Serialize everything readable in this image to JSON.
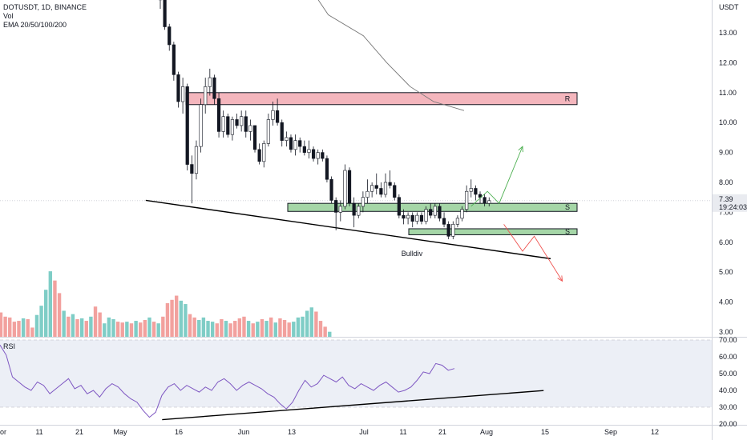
{
  "legend": {
    "symbol": "DOTUSDT, 1D, BINANCE",
    "vol": "Vol",
    "ema": "EMA 20/50/100/200"
  },
  "rsi_label": "RSI",
  "price_axis": {
    "unit": "USDT",
    "ticks": [
      "13.00",
      "12.00",
      "11.00",
      "10.00",
      "9.00",
      "8.00",
      "7.00",
      "6.00",
      "5.00",
      "4.00",
      "3.00"
    ],
    "current_price": "7.39",
    "countdown": "19:24:03"
  },
  "rsi_axis": {
    "ticks": [
      "70.00",
      "60.00",
      "50.00",
      "40.00",
      "30.00",
      "20.00"
    ]
  },
  "time_axis": [
    "or",
    "11",
    "21",
    "May",
    "16",
    "Jun",
    "13",
    "Jul",
    "11",
    "21",
    "Aug",
    "15",
    "Sep",
    "12"
  ],
  "zones": [
    {
      "label": "R",
      "color": "#f4b6bd",
      "low": 10.6,
      "high": 11.0
    },
    {
      "label": "S",
      "color": "#a5d6a7",
      "low": 7.03,
      "high": 7.3
    },
    {
      "label": "S",
      "color": "#a5d6a7",
      "low": 6.25,
      "high": 6.45
    }
  ],
  "annotations": {
    "bulldiv": "Bulldiv"
  },
  "colors": {
    "up": "#26a69a",
    "down": "#ef5350",
    "vol_up": "#7fcdc6",
    "vol_down": "#f2a19e",
    "zone_border": "#131722",
    "rsi_line": "#7e57c2",
    "ema": "#777777",
    "green_path": "#4caf50",
    "red_path": "#ef5350"
  },
  "chart_data": {
    "type": "candlestick",
    "title": "DOTUSDT, 1D, BINANCE",
    "ylim": [
      3.0,
      13.6
    ],
    "ohlc": [
      [
        14.6,
        15.2,
        13.8,
        14.1
      ],
      [
        14.1,
        14.2,
        13.1,
        13.2
      ],
      [
        13.2,
        13.3,
        12.4,
        12.6
      ],
      [
        12.6,
        12.7,
        11.4,
        11.6
      ],
      [
        11.6,
        11.7,
        10.5,
        10.7
      ],
      [
        10.7,
        11.5,
        10.3,
        11.2
      ],
      [
        11.2,
        11.3,
        8.4,
        8.6
      ],
      [
        8.6,
        8.9,
        7.3,
        8.3
      ],
      [
        8.3,
        9.4,
        8.1,
        9.2
      ],
      [
        9.2,
        10.8,
        9.0,
        10.6
      ],
      [
        10.6,
        11.5,
        10.3,
        11.2
      ],
      [
        11.2,
        11.8,
        10.9,
        11.5
      ],
      [
        11.5,
        11.6,
        10.6,
        10.8
      ],
      [
        10.8,
        11.0,
        9.5,
        9.7
      ],
      [
        9.7,
        10.4,
        9.5,
        10.2
      ],
      [
        10.2,
        10.3,
        9.5,
        9.6
      ],
      [
        9.6,
        10.2,
        9.4,
        10.1
      ],
      [
        10.1,
        10.3,
        9.8,
        9.9
      ],
      [
        9.9,
        10.4,
        9.7,
        10.2
      ],
      [
        10.2,
        10.4,
        9.5,
        9.7
      ],
      [
        9.7,
        10.1,
        9.4,
        9.9
      ],
      [
        9.9,
        9.9,
        9.0,
        9.1
      ],
      [
        9.1,
        9.3,
        8.6,
        8.7
      ],
      [
        8.7,
        9.4,
        8.5,
        9.3
      ],
      [
        9.3,
        10.3,
        9.2,
        10.1
      ],
      [
        10.1,
        10.7,
        9.9,
        10.4
      ],
      [
        10.4,
        10.8,
        9.9,
        10.0
      ],
      [
        10.0,
        10.1,
        9.2,
        9.4
      ],
      [
        9.4,
        9.7,
        9.2,
        9.5
      ],
      [
        9.5,
        9.6,
        9.0,
        9.1
      ],
      [
        9.1,
        9.6,
        8.9,
        9.4
      ],
      [
        9.4,
        9.5,
        9.0,
        9.2
      ],
      [
        9.2,
        9.4,
        8.9,
        9.0
      ],
      [
        9.0,
        9.4,
        8.8,
        9.1
      ],
      [
        9.1,
        9.2,
        8.7,
        8.8
      ],
      [
        8.8,
        9.1,
        8.6,
        9.0
      ],
      [
        9.0,
        9.1,
        8.7,
        8.8
      ],
      [
        8.8,
        8.9,
        8.0,
        8.1
      ],
      [
        8.1,
        8.2,
        7.3,
        7.4
      ],
      [
        7.4,
        7.5,
        6.4,
        7.0
      ],
      [
        7.0,
        7.4,
        6.7,
        7.2
      ],
      [
        7.2,
        8.6,
        7.1,
        8.4
      ],
      [
        8.4,
        8.5,
        7.2,
        7.3
      ],
      [
        7.3,
        7.5,
        6.5,
        6.9
      ],
      [
        6.9,
        7.3,
        6.8,
        7.2
      ],
      [
        7.2,
        7.7,
        7.0,
        7.5
      ],
      [
        7.5,
        8.1,
        7.3,
        7.7
      ],
      [
        7.7,
        8.0,
        7.5,
        7.9
      ],
      [
        7.9,
        8.3,
        7.6,
        7.8
      ],
      [
        7.8,
        8.0,
        7.5,
        7.6
      ],
      [
        7.6,
        8.3,
        7.5,
        8.0
      ],
      [
        8.0,
        8.4,
        7.8,
        7.9
      ],
      [
        7.9,
        8.0,
        7.4,
        7.5
      ],
      [
        7.5,
        7.6,
        6.8,
        6.9
      ],
      [
        6.9,
        7.1,
        6.6,
        6.8
      ],
      [
        6.8,
        7.0,
        6.6,
        6.9
      ],
      [
        6.9,
        7.0,
        6.5,
        6.7
      ],
      [
        6.7,
        7.0,
        6.6,
        6.9
      ],
      [
        6.9,
        7.0,
        6.6,
        6.7
      ],
      [
        6.7,
        7.2,
        6.6,
        7.1
      ],
      [
        7.1,
        7.3,
        6.8,
        6.9
      ],
      [
        6.9,
        7.3,
        6.8,
        7.2
      ],
      [
        7.2,
        7.3,
        6.7,
        6.8
      ],
      [
        6.8,
        7.0,
        6.5,
        6.6
      ],
      [
        6.6,
        6.7,
        6.1,
        6.2
      ],
      [
        6.2,
        6.7,
        6.1,
        6.6
      ],
      [
        6.6,
        6.9,
        6.5,
        6.8
      ],
      [
        6.8,
        7.2,
        6.7,
        7.1
      ],
      [
        7.1,
        7.9,
        7.0,
        7.7
      ],
      [
        7.7,
        8.1,
        7.5,
        7.8
      ],
      [
        7.8,
        7.9,
        7.4,
        7.6
      ],
      [
        7.6,
        7.7,
        7.3,
        7.5
      ],
      [
        7.5,
        7.6,
        7.2,
        7.3
      ],
      [
        7.3,
        7.5,
        7.2,
        7.39
      ]
    ],
    "volume_levels": [
      0.29,
      0.24,
      0.23,
      0.18,
      0.19,
      0.22,
      0.21,
      0.11,
      0.26,
      0.37,
      0.56,
      0.78,
      0.67,
      0.52,
      0.31,
      0.24,
      0.27,
      0.21,
      0.22,
      0.19,
      0.24,
      0.36,
      0.29,
      0.16,
      0.23,
      0.21,
      0.18,
      0.17,
      0.18,
      0.16,
      0.19,
      0.17,
      0.2,
      0.23,
      0.18,
      0.16,
      0.24,
      0.4,
      0.44,
      0.49,
      0.43,
      0.39,
      0.27,
      0.23,
      0.2,
      0.23,
      0.19,
      0.18,
      0.16,
      0.21,
      0.19,
      0.16,
      0.19,
      0.22,
      0.24,
      0.19,
      0.16,
      0.18,
      0.21,
      0.19,
      0.23,
      0.17,
      0.22,
      0.2,
      0.17,
      0.18,
      0.23,
      0.24,
      0.31,
      0.35,
      0.3,
      0.19,
      0.12,
      0.06
    ],
    "ema_line": [
      [
        11.8,
        15.0
      ],
      [
        13.0,
        13.6
      ],
      [
        14.5,
        12.9
      ],
      [
        15.5,
        12.0
      ],
      [
        16.5,
        11.2
      ],
      [
        17.5,
        10.7
      ],
      [
        18.8,
        10.4
      ]
    ],
    "support_line": [
      [
        5.2,
        7.4
      ],
      [
        22.5,
        5.45
      ]
    ],
    "rsi": {
      "ylim": [
        20,
        70
      ],
      "values": [
        67,
        61,
        48,
        45,
        42,
        40,
        45,
        43,
        38,
        41,
        44,
        47,
        41,
        43,
        38,
        40,
        36,
        41,
        44,
        42,
        38,
        35,
        33,
        28,
        24,
        27,
        37,
        42,
        44,
        40,
        43,
        41,
        39,
        42,
        40,
        45,
        47,
        44,
        40,
        43,
        45,
        43,
        41,
        38,
        36,
        32,
        29,
        33,
        40,
        46,
        42,
        44,
        49,
        47,
        45,
        48,
        43,
        41,
        44,
        42,
        40,
        43,
        45,
        42,
        39,
        40,
        42,
        46,
        51,
        50,
        56,
        55,
        52,
        53
      ],
      "trendline": [
        [
          5.9,
          22.6
        ],
        [
          22.2,
          39.9
        ]
      ]
    },
    "projections": [
      {
        "points": [
          [
            19.1,
            7.2
          ],
          [
            19.8,
            7.7
          ],
          [
            20.3,
            7.3
          ],
          [
            21.3,
            9.2
          ]
        ],
        "color": "green"
      },
      {
        "points": [
          [
            20.5,
            6.6
          ],
          [
            21.3,
            5.7
          ],
          [
            21.8,
            6.2
          ],
          [
            23.0,
            4.7
          ]
        ],
        "color": "red"
      }
    ]
  }
}
